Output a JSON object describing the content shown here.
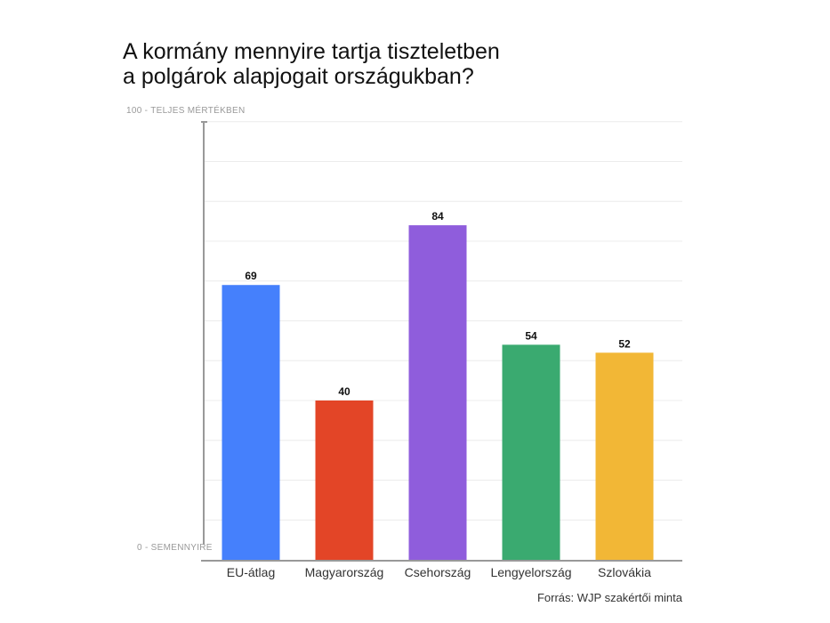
{
  "chart_data": {
    "type": "bar",
    "title_lines": [
      "A kormány mennyire tartja tiszteletben",
      "a polgárok alapjogait országukban?"
    ],
    "categories": [
      "EU-átlag",
      "Magyarország",
      "Csehország",
      "Lengyelország",
      "Szlovákia"
    ],
    "values": [
      69,
      40,
      84,
      54,
      52
    ],
    "colors": [
      "#4580fc",
      "#e34527",
      "#8f5ddc",
      "#3aaa70",
      "#f2b736"
    ],
    "ylim": [
      0,
      110
    ],
    "y_top_label": "100 - TELJES MÉRTÉKBEN",
    "y_bottom_label": "0 - SEMENNYIRE",
    "source": "Forrás: WJP szakértői minta",
    "grid": true
  }
}
